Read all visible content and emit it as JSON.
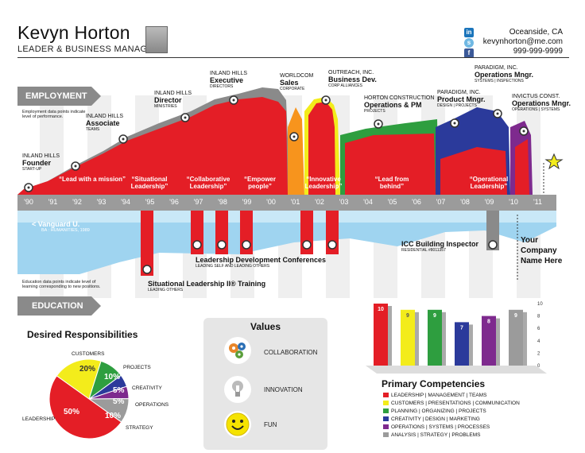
{
  "header": {
    "name": "Kevyn Horton",
    "role": "LEADER & BUSINESS MANAGER",
    "location": "Oceanside, CA",
    "email": "kevynhorton@me.com",
    "phone": "999-999-9999",
    "social_icons": [
      "linkedin-icon",
      "skype-icon",
      "facebook-icon"
    ]
  },
  "timeline": {
    "employment_label": "EMPLOYMENT",
    "education_label": "EDUCATION",
    "employment_note": "Employment data points indicate level of performance.",
    "education_note": "Education data points indicate level of learning corresponding to new positions.",
    "years": [
      "'90",
      "'91",
      "'92",
      "'93",
      "'94",
      "'95",
      "'96",
      "'97",
      "'98",
      "'99",
      "'00",
      "'01",
      "'02",
      "'03",
      "'04",
      "'05",
      "'06",
      "'07",
      "'08",
      "'09",
      "'10",
      "'11"
    ],
    "positions": [
      {
        "company": "INLAND HILLS",
        "title": "Founder",
        "sub": "START-UP"
      },
      {
        "company": "INLAND HILLS",
        "title": "Associate",
        "sub": "TEAMS"
      },
      {
        "company": "INLAND HILLS",
        "title": "Director",
        "sub": "MINISTRIES"
      },
      {
        "company": "INLAND HILLS",
        "title": "Executive",
        "sub": "DIRECTORS"
      },
      {
        "company": "WORLDCOM",
        "title": "Sales",
        "sub": "CORPORATE"
      },
      {
        "company": "OUTREACH, INC.",
        "title": "Business Dev.",
        "sub": "CORP ALLIANCES"
      },
      {
        "company": "HORTON CONSTRUCTION",
        "title": "Operations & PM",
        "sub": "PROJECTS"
      },
      {
        "company": "PARADIGM, INC.",
        "title": "Product Mngr.",
        "sub": "DESIGN | PROJECTS"
      },
      {
        "company": "PARADIGM, INC.",
        "title": "Operations Mngr.",
        "sub": "SYSTEMS | INSPECTIONS"
      },
      {
        "company": "INVICTUS CONST.",
        "title": "Operations Mngr.",
        "sub": "OPERATIONS | SYSTEMS"
      }
    ],
    "quotes": [
      "“Lead with a mission”",
      "“Situational Leadership”",
      "“Collaborative Leadership”",
      "“Empower people”",
      "“Innovative Leadership”",
      "“Lead from behind”",
      "“Operational Leadership”"
    ],
    "education": [
      {
        "title": "< Vanguard U.",
        "sub": "BA : HUMANITIES, 1989"
      },
      {
        "title": "Situational Leadership II® Training",
        "sub": "LEADING OTHERS"
      },
      {
        "title": "Leadership Development Conferences",
        "sub": "LEADING SELF AND LEADING OTHERS"
      },
      {
        "title": "ICC Building Inspector",
        "sub": "RESIDENTIAL #8011357"
      }
    ],
    "future": "Your Company Name Here"
  },
  "responsibilities": {
    "title": "Desired Responsibilities",
    "slices": [
      {
        "label": "LEADERSHIP",
        "percent": "50%",
        "value": 50,
        "color": "#e41e26"
      },
      {
        "label": "CUSTOMERS",
        "percent": "20%",
        "value": 20,
        "color": "#f3ec1b"
      },
      {
        "label": "PROJECTS",
        "percent": "10%",
        "value": 10,
        "color": "#2e9e3f"
      },
      {
        "label": "CREATIVITY",
        "percent": "5%",
        "value": 5,
        "color": "#2b3a9b"
      },
      {
        "label": "OPERATIONS",
        "percent": "5%",
        "value": 5,
        "color": "#7e2a8e"
      },
      {
        "label": "STRATEGY",
        "percent": "10%",
        "value": 10,
        "color": "#9b9b9b"
      }
    ]
  },
  "values": {
    "title": "Values",
    "items": [
      {
        "label": "COLLABORATION",
        "icon": "gears-icon"
      },
      {
        "label": "INNOVATION",
        "icon": "lightbulb-icon"
      },
      {
        "label": "FUN",
        "icon": "smiley-icon"
      }
    ]
  },
  "chart_data": {
    "type": "bar",
    "title": "Primary Competencies",
    "categories": [
      "LEADERSHIP | MANAGEMENT | TEAMS",
      "CUSTOMERS | PRESENTATIONS | COMMUNICATION",
      "PLANNING | ORGANIZING | PROJECTS",
      "CREATIVITY | DESIGN | MARKETING",
      "OPERATIONS | SYSTEMS | PROCESSES",
      "ANALYSIS | STRATEGY | PROBLEMS"
    ],
    "values": [
      10,
      9,
      9,
      7,
      8,
      9
    ],
    "colors": [
      "#e41e26",
      "#f3ec1b",
      "#2e9e3f",
      "#2b3a9b",
      "#7e2a8e",
      "#9b9b9b"
    ],
    "ylim": [
      0,
      10
    ],
    "yticks": [
      0,
      2,
      4,
      6,
      8,
      10
    ]
  }
}
